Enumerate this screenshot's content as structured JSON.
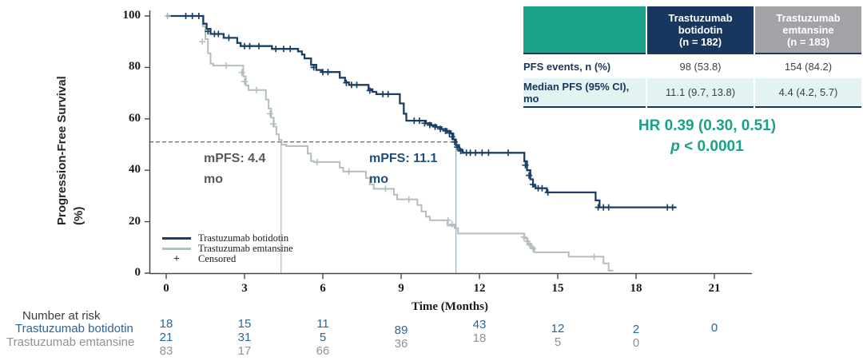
{
  "figure": {
    "y_axis_title_line1": "Progression-Free Survival",
    "y_axis_title_line2": "(%)",
    "x_axis_title": "Time (Months)"
  },
  "legend": {
    "items": [
      {
        "label": "Trastuzumab botidotin",
        "type": "line",
        "color": "#1c3f66"
      },
      {
        "label": "Trastuzumab emtansine",
        "type": "line",
        "color": "#b2bfba"
      },
      {
        "label": "Censored",
        "type": "symbol",
        "symbol": "+"
      }
    ]
  },
  "annotations": {
    "mpfs_emtansine": {
      "line1": "mPFS: 4.4",
      "line2": "mo",
      "color": "#595959"
    },
    "mpfs_botidotin": {
      "line1": "mPFS: 11.1",
      "line2": "mo",
      "color": "#1f4e79"
    },
    "hazard_ratio": {
      "line1": "HR 0.39 (0.30, 0.51)",
      "p_italic": "p",
      "p_rest": " < 0.0001",
      "color": "#18a287"
    }
  },
  "stats_table": {
    "header": {
      "col1_lines": "Trastuzumab\nbotidotin\n(n = 182)",
      "col2_lines": "Trastuzumab\nemtansine\n(n = 183)"
    },
    "rows": [
      {
        "label": "PFS events, n (%)",
        "col1": "98 (53.8)",
        "col2": "154 (84.2)"
      },
      {
        "label": "Median PFS (95% CI),\nmo",
        "col1": "11.1 (9.7, 13.8)",
        "col2": "4.4 (4.2, 5.7)"
      }
    ],
    "colors": {
      "accent_teal": "#18a287",
      "header_navy": "#17375e",
      "header_gray": "#a1a3a6",
      "row_highlight": "#e2f3f1",
      "label_navy": "#17365d"
    }
  },
  "number_at_risk": {
    "title": "Number at risk",
    "groups": [
      {
        "label": "Trastuzumab botidotin",
        "color": "#2e6496"
      },
      {
        "label": "Trastuzumab emtansine",
        "color": "#8f9296"
      }
    ],
    "columns": [
      {
        "month": 0,
        "dy": 0,
        "values": [
          {
            "text": "18",
            "color": "blue"
          },
          {
            "text": "21",
            "color": "blue"
          },
          {
            "text": "83",
            "color": "gray"
          }
        ]
      },
      {
        "month": 3,
        "dy": 0,
        "values": [
          {
            "text": "15",
            "color": "blue"
          },
          {
            "text": "31",
            "color": "blue"
          },
          {
            "text": "17",
            "color": "gray"
          }
        ]
      },
      {
        "month": 6,
        "dy": 0,
        "values": [
          {
            "text": "11",
            "color": "blue"
          },
          {
            "text": "5",
            "color": "blue"
          },
          {
            "text": "66",
            "color": "gray"
          }
        ]
      },
      {
        "month": 9,
        "dy": 8,
        "values": [
          {
            "text": "89",
            "color": "blue"
          },
          {
            "text": "36",
            "color": "gray"
          }
        ]
      },
      {
        "month": 12,
        "dy": 1,
        "values": [
          {
            "text": "43",
            "color": "blue"
          },
          {
            "text": "18",
            "color": "gray"
          }
        ]
      },
      {
        "month": 15,
        "dy": 6,
        "values": [
          {
            "text": "12",
            "color": "blue"
          },
          {
            "text": "5",
            "color": "gray"
          }
        ]
      },
      {
        "month": 18,
        "dy": 7,
        "values": [
          {
            "text": "2",
            "color": "blue"
          },
          {
            "text": "0",
            "color": "gray"
          }
        ]
      },
      {
        "month": 21,
        "dy": 5,
        "values": [
          {
            "text": "0",
            "color": "blue"
          }
        ]
      }
    ],
    "number_colors": {
      "blue": "#2e6496",
      "gray": "#8f9296"
    }
  },
  "chart_data": {
    "type": "line",
    "subtype": "kaplan_meier_step",
    "title": "",
    "xlabel": "Time (Months)",
    "ylabel": "Progression-Free Survival (%)",
    "xlim": [
      0,
      22.5
    ],
    "ylim": [
      0,
      100
    ],
    "x_ticks": [
      0,
      3,
      6,
      9,
      12,
      15,
      18,
      21
    ],
    "y_ticks": [
      0,
      20,
      40,
      60,
      80,
      100
    ],
    "grid": false,
    "legend_position": "inside-lower-left",
    "reference_lines": {
      "horizontal_dashed_pct": 51,
      "vertical_at_months": [
        4.4,
        11.1
      ]
    },
    "series": [
      {
        "name": "Trastuzumab botidotin",
        "color": "#1c3f66",
        "median_months": 11.1,
        "steps": [
          [
            0,
            100
          ],
          [
            1.3,
            100
          ],
          [
            1.42,
            97
          ],
          [
            1.55,
            95
          ],
          [
            1.7,
            93
          ],
          [
            2.1,
            93
          ],
          [
            2.2,
            91.5
          ],
          [
            2.6,
            91.5
          ],
          [
            2.72,
            89.5
          ],
          [
            2.85,
            88.3
          ],
          [
            3.9,
            88.3
          ],
          [
            4.05,
            87.2
          ],
          [
            4.9,
            87.2
          ],
          [
            5.05,
            86.2
          ],
          [
            5.2,
            85
          ],
          [
            5.3,
            83.5
          ],
          [
            5.55,
            81
          ],
          [
            5.75,
            79
          ],
          [
            5.95,
            78.2
          ],
          [
            6.5,
            78.2
          ],
          [
            6.65,
            76
          ],
          [
            6.85,
            74.2
          ],
          [
            7.0,
            73.2
          ],
          [
            7.6,
            73.2
          ],
          [
            7.75,
            71.5
          ],
          [
            7.9,
            70.5
          ],
          [
            8.05,
            69.6
          ],
          [
            8.85,
            69.6
          ],
          [
            8.95,
            66
          ],
          [
            9.1,
            62
          ],
          [
            9.2,
            59.3
          ],
          [
            9.8,
            59.3
          ],
          [
            9.95,
            58.3
          ],
          [
            10.15,
            57.5
          ],
          [
            10.35,
            56.8
          ],
          [
            10.55,
            56
          ],
          [
            10.75,
            55.2
          ],
          [
            10.9,
            54.3
          ],
          [
            11.0,
            52
          ],
          [
            11.1,
            49.8
          ],
          [
            11.22,
            48
          ],
          [
            11.35,
            46.8
          ],
          [
            13.6,
            46.8
          ],
          [
            13.72,
            43.5
          ],
          [
            13.82,
            40
          ],
          [
            13.95,
            36.5
          ],
          [
            14.05,
            33.8
          ],
          [
            14.15,
            33
          ],
          [
            14.45,
            33
          ],
          [
            14.58,
            31.4
          ],
          [
            16.3,
            31.4
          ],
          [
            16.45,
            28.3
          ],
          [
            16.6,
            25.6
          ],
          [
            19.55,
            25.6
          ]
        ],
        "censors": [
          [
            0.75,
            100
          ],
          [
            1.0,
            100
          ],
          [
            1.25,
            100
          ],
          [
            1.6,
            94
          ],
          [
            1.85,
            93
          ],
          [
            2.0,
            93
          ],
          [
            2.4,
            91.5
          ],
          [
            3.0,
            88.3
          ],
          [
            3.2,
            88.3
          ],
          [
            3.55,
            88.3
          ],
          [
            4.2,
            87.2
          ],
          [
            4.5,
            87.2
          ],
          [
            4.75,
            87.2
          ],
          [
            5.65,
            80
          ],
          [
            6.0,
            78.2
          ],
          [
            6.2,
            78.2
          ],
          [
            6.9,
            74
          ],
          [
            7.1,
            73.2
          ],
          [
            7.3,
            73.2
          ],
          [
            7.8,
            71
          ],
          [
            8.3,
            69.6
          ],
          [
            8.5,
            69.6
          ],
          [
            9.5,
            59.3
          ],
          [
            9.7,
            59.3
          ],
          [
            9.9,
            58.3
          ],
          [
            10.1,
            57.6
          ],
          [
            10.3,
            56.9
          ],
          [
            10.5,
            56.1
          ],
          [
            10.7,
            55.3
          ],
          [
            10.85,
            54.5
          ],
          [
            10.95,
            53
          ],
          [
            11.05,
            51
          ],
          [
            11.15,
            49
          ],
          [
            11.28,
            47.5
          ],
          [
            11.5,
            46.8
          ],
          [
            11.65,
            46.8
          ],
          [
            11.85,
            46.8
          ],
          [
            12.1,
            46.8
          ],
          [
            12.35,
            46.8
          ],
          [
            13.1,
            46.8
          ],
          [
            13.76,
            42
          ],
          [
            13.9,
            38
          ],
          [
            14.05,
            34.5
          ],
          [
            14.25,
            33
          ],
          [
            14.4,
            33
          ],
          [
            14.62,
            31.4
          ],
          [
            16.55,
            25.6
          ],
          [
            16.75,
            25.6
          ],
          [
            16.95,
            25.6
          ],
          [
            19.2,
            25.6
          ],
          [
            19.4,
            25.6
          ]
        ]
      },
      {
        "name": "Trastuzumab emtansine",
        "color": "#b2bfba",
        "median_months": 4.4,
        "steps": [
          [
            0,
            100
          ],
          [
            1.3,
            100
          ],
          [
            1.4,
            96
          ],
          [
            1.5,
            91
          ],
          [
            1.6,
            85.5
          ],
          [
            1.7,
            81.5
          ],
          [
            1.8,
            80.7
          ],
          [
            2.85,
            80.7
          ],
          [
            2.95,
            76.5
          ],
          [
            3.05,
            73
          ],
          [
            3.15,
            71.2
          ],
          [
            3.7,
            71.2
          ],
          [
            3.82,
            67.5
          ],
          [
            3.92,
            64
          ],
          [
            4.02,
            60.5
          ],
          [
            4.12,
            57
          ],
          [
            4.22,
            54
          ],
          [
            4.32,
            51.8
          ],
          [
            4.42,
            49.9
          ],
          [
            4.6,
            49.4
          ],
          [
            5.3,
            49.4
          ],
          [
            5.42,
            46.5
          ],
          [
            5.55,
            43.6
          ],
          [
            5.65,
            43.2
          ],
          [
            6.5,
            43.2
          ],
          [
            6.65,
            41
          ],
          [
            6.78,
            39.5
          ],
          [
            7.5,
            39.5
          ],
          [
            7.65,
            37
          ],
          [
            7.8,
            34.5
          ],
          [
            7.95,
            32.8
          ],
          [
            8.6,
            32.8
          ],
          [
            8.72,
            30.5
          ],
          [
            8.85,
            28.7
          ],
          [
            9.5,
            28.7
          ],
          [
            9.62,
            26.5
          ],
          [
            9.78,
            24
          ],
          [
            9.95,
            22
          ],
          [
            10.1,
            20.6
          ],
          [
            10.6,
            20.6
          ],
          [
            10.78,
            18.5
          ],
          [
            11.05,
            17.5
          ],
          [
            11.18,
            15.4
          ],
          [
            13.6,
            15.4
          ],
          [
            13.72,
            13.5
          ],
          [
            13.85,
            11.5
          ],
          [
            13.98,
            10
          ],
          [
            14.1,
            8.1
          ],
          [
            15.3,
            8.1
          ],
          [
            15.42,
            6.4
          ],
          [
            16.6,
            6.4
          ],
          [
            16.75,
            3.8
          ],
          [
            16.95,
            1
          ],
          [
            17.1,
            0.8
          ]
        ],
        "censors": [
          [
            0.05,
            100
          ],
          [
            1.38,
            90
          ],
          [
            2.3,
            80.7
          ],
          [
            2.9,
            78
          ],
          [
            3.0,
            74.5
          ],
          [
            3.45,
            71.2
          ],
          [
            3.98,
            62
          ],
          [
            4.1,
            58
          ],
          [
            5.78,
            43.2
          ],
          [
            7.0,
            39.5
          ],
          [
            8.4,
            32.8
          ],
          [
            9.3,
            28.7
          ],
          [
            10.8,
            20.6
          ],
          [
            10.95,
            19
          ],
          [
            13.7,
            14
          ],
          [
            13.82,
            12.5
          ],
          [
            13.92,
            11
          ],
          [
            14.05,
            9.5
          ],
          [
            16.4,
            6.4
          ]
        ]
      }
    ]
  }
}
